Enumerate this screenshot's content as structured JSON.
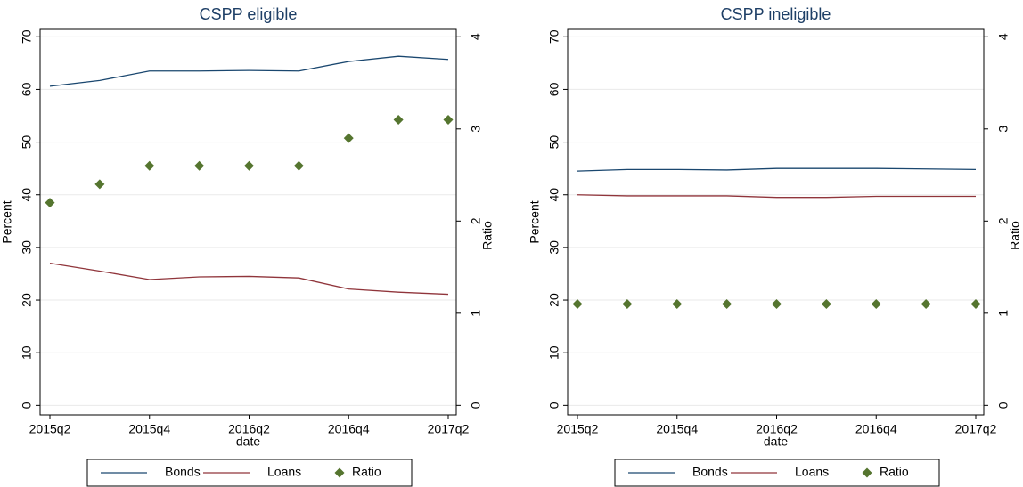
{
  "chart_data": [
    {
      "type": "line",
      "title": "CSPP eligible",
      "x_label": "date",
      "y_label": "Percent",
      "y2_label": "Ratio",
      "categories": [
        "2015q2",
        null,
        "2015q4",
        null,
        "2016q2",
        null,
        "2016q4",
        null,
        "2017q2"
      ],
      "series": [
        {
          "name": "Bonds",
          "color": "#1a476f",
          "mode": "lines",
          "values": [
            60.6,
            61.7,
            63.5,
            63.5,
            63.6,
            63.5,
            65.3,
            66.3,
            65.7
          ]
        },
        {
          "name": "Loans",
          "color": "#90353b",
          "mode": "lines",
          "values": [
            27.0,
            25.5,
            23.9,
            24.4,
            24.5,
            24.2,
            22.1,
            21.5,
            21.1
          ]
        },
        {
          "name": "Ratio",
          "color": "#55752f",
          "mode": "markers",
          "axis": "y2",
          "values": [
            2.2,
            2.4,
            2.6,
            2.6,
            2.6,
            2.6,
            2.9,
            3.1,
            3.1
          ]
        }
      ],
      "ylim": [
        -1.8,
        71.4
      ],
      "yticks": [
        0,
        10,
        20,
        30,
        40,
        50,
        60,
        70
      ],
      "y2lim": [
        -0.103,
        4.08
      ],
      "y2ticks": [
        0,
        1,
        2,
        3,
        4
      ],
      "grid": true,
      "legend": "bottom"
    },
    {
      "type": "line",
      "title": "CSPP ineligible",
      "x_label": "date",
      "y_label": "Percent",
      "y2_label": "Ratio",
      "categories": [
        "2015q2",
        null,
        "2015q4",
        null,
        "2016q2",
        null,
        "2016q4",
        null,
        "2017q2"
      ],
      "series": [
        {
          "name": "Bonds",
          "color": "#1a476f",
          "mode": "lines",
          "values": [
            44.5,
            44.8,
            44.8,
            44.7,
            45.0,
            45.0,
            45.0,
            44.9,
            44.8
          ]
        },
        {
          "name": "Loans",
          "color": "#90353b",
          "mode": "lines",
          "values": [
            40.0,
            39.8,
            39.8,
            39.8,
            39.5,
            39.5,
            39.7,
            39.7,
            39.7
          ]
        },
        {
          "name": "Ratio",
          "color": "#55752f",
          "mode": "markers",
          "axis": "y2",
          "values": [
            1.1,
            1.1,
            1.1,
            1.1,
            1.1,
            1.1,
            1.1,
            1.1,
            1.1
          ]
        }
      ],
      "ylim": [
        -1.8,
        71.4
      ],
      "yticks": [
        0,
        10,
        20,
        30,
        40,
        50,
        60,
        70
      ],
      "y2lim": [
        -0.103,
        4.08
      ],
      "y2ticks": [
        0,
        1,
        2,
        3,
        4
      ],
      "grid": true,
      "legend": "bottom"
    }
  ]
}
